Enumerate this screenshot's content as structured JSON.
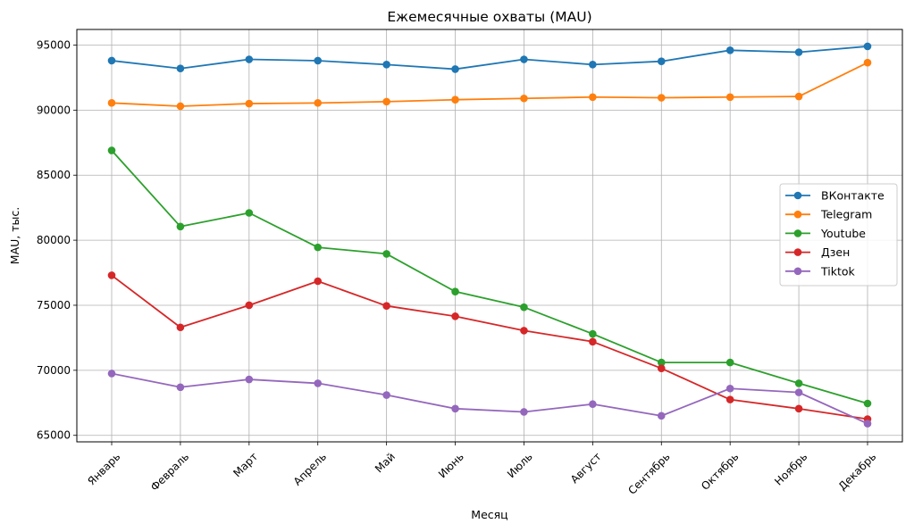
{
  "chart_data": {
    "type": "line",
    "title": "Ежемесячные охваты (MAU)",
    "xlabel": "Месяц",
    "ylabel": "MAU, тыс.",
    "categories": [
      "Январь",
      "Февраль",
      "Март",
      "Апрель",
      "Май",
      "Июнь",
      "Июль",
      "Август",
      "Сентябрь",
      "Октябрь",
      "Ноябрь",
      "Декабрь"
    ],
    "yticks": [
      65000,
      70000,
      75000,
      80000,
      85000,
      90000,
      95000
    ],
    "ylim": [
      64500,
      96200
    ],
    "grid": true,
    "legend_position": "center-right",
    "markers": "circle",
    "series": [
      {
        "name": "ВКонтакте",
        "color": "#1f77b4",
        "values": [
          93800,
          93200,
          93900,
          93800,
          93500,
          93150,
          93900,
          93500,
          93750,
          94600,
          94450,
          94900
        ]
      },
      {
        "name": "Telegram",
        "color": "#ff7f0e",
        "values": [
          90550,
          90300,
          90500,
          90550,
          90650,
          90800,
          90900,
          91000,
          90950,
          91000,
          91050,
          93650
        ]
      },
      {
        "name": "Youtube",
        "color": "#2ca02c",
        "values": [
          86900,
          81050,
          82100,
          79450,
          78950,
          76050,
          74850,
          72800,
          70600,
          70600,
          69000,
          67450
        ]
      },
      {
        "name": "Дзен",
        "color": "#d62728",
        "values": [
          77300,
          73300,
          75000,
          76850,
          74950,
          74150,
          73050,
          72200,
          70150,
          67750,
          67050,
          66250
        ]
      },
      {
        "name": "Tiktok",
        "color": "#9467bd",
        "values": [
          69750,
          68700,
          69300,
          69000,
          68100,
          67050,
          66800,
          67400,
          66500,
          68600,
          68300,
          65900
        ]
      }
    ]
  }
}
